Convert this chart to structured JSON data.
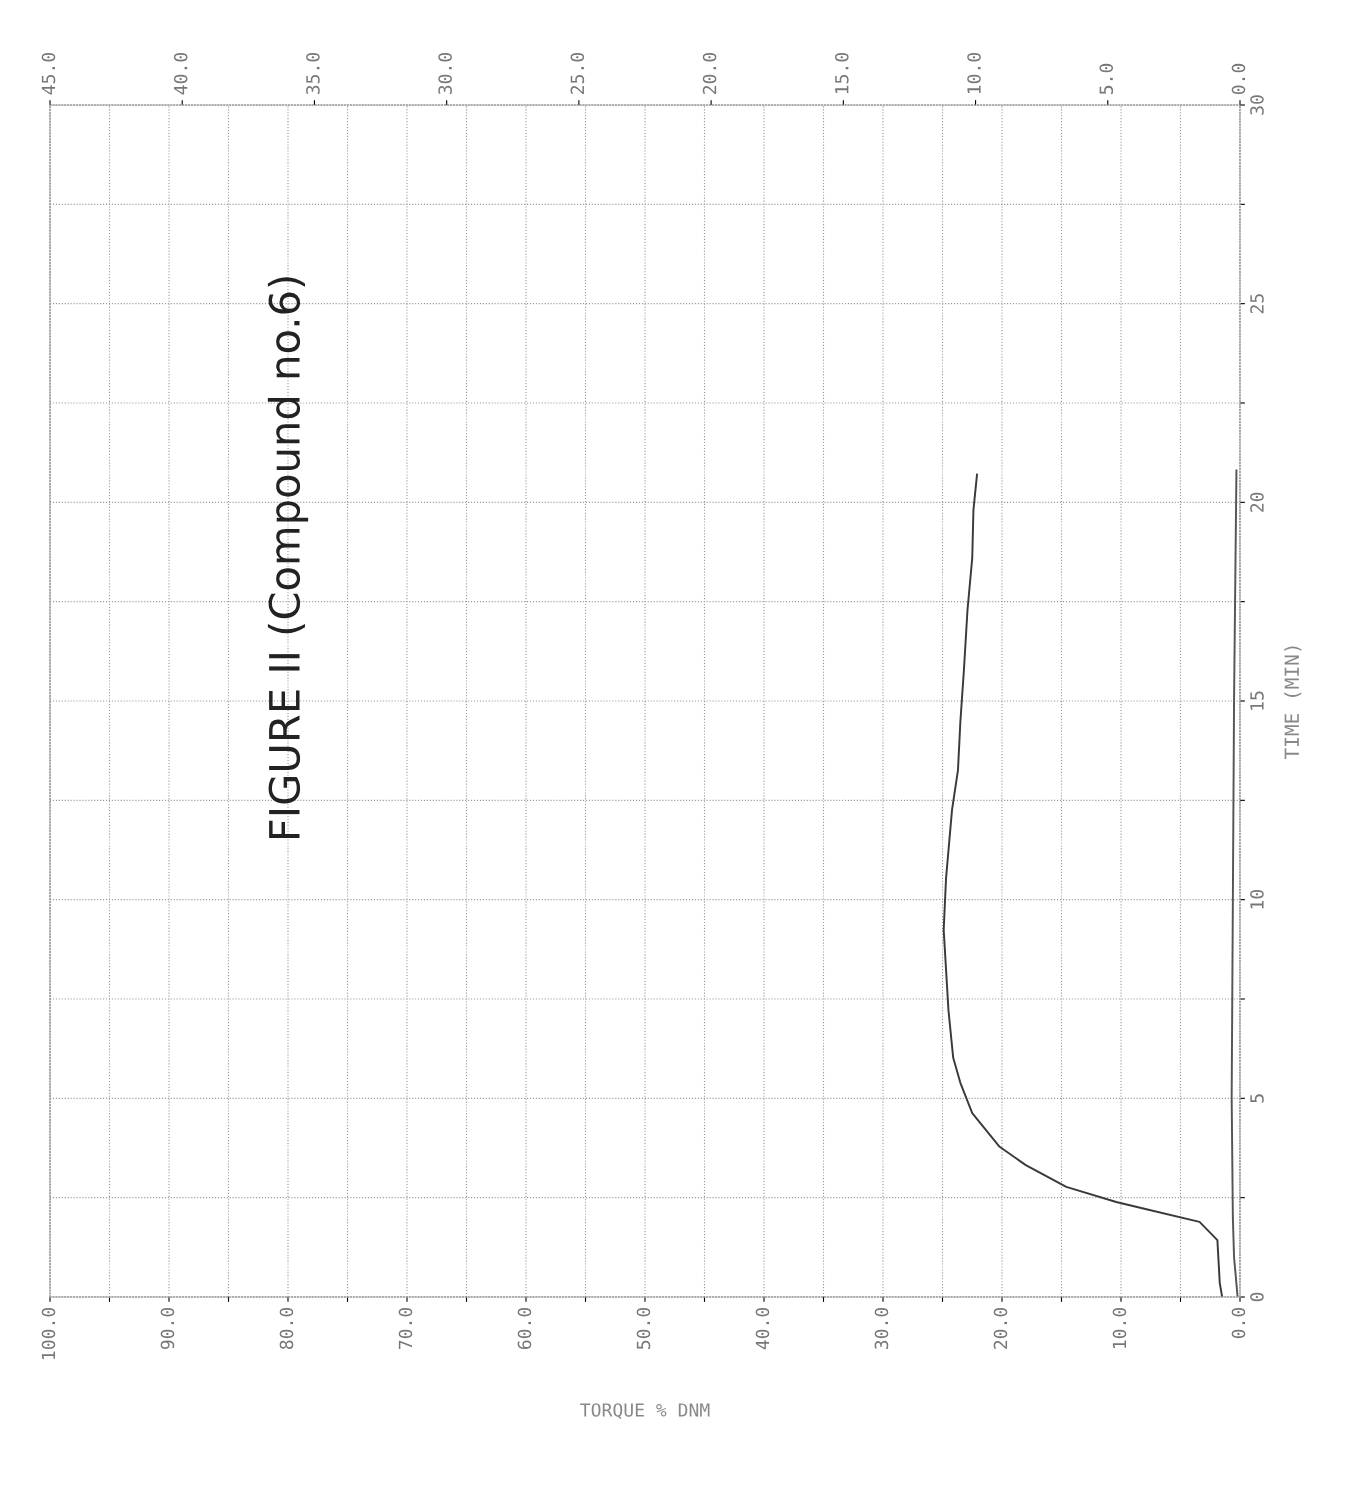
{
  "chart_data": {
    "type": "line",
    "orientation": "horizontal",
    "annotations": [
      "FIGURE II (Compound no.6)"
    ],
    "xlabel": "TORQUE % DNM",
    "ylabel": "TIME (MIN)",
    "xlim": [
      100,
      0
    ],
    "xticks": [
      {
        "value": 100,
        "label": "100.0"
      },
      {
        "value": 95,
        "label": null
      },
      {
        "value": 90,
        "label": "90.0"
      },
      {
        "value": 85,
        "label": null
      },
      {
        "value": 80,
        "label": "80.0"
      },
      {
        "value": 75,
        "label": null
      },
      {
        "value": 70,
        "label": "70.0"
      },
      {
        "value": 65,
        "label": null
      },
      {
        "value": 60,
        "label": "60.0"
      },
      {
        "value": 55,
        "label": null
      },
      {
        "value": 50,
        "label": "50.0"
      },
      {
        "value": 45,
        "label": null
      },
      {
        "value": 40,
        "label": "40.0"
      },
      {
        "value": 35,
        "label": null
      },
      {
        "value": 30,
        "label": "30.0"
      },
      {
        "value": 25,
        "label": null
      },
      {
        "value": 20,
        "label": "20.0"
      },
      {
        "value": 15,
        "label": null
      },
      {
        "value": 10,
        "label": "10.0"
      },
      {
        "value": 5,
        "label": null
      },
      {
        "value": 0,
        "label": "0.0"
      }
    ],
    "x2lim": [
      45,
      0
    ],
    "x2ticks": [
      {
        "value": 45,
        "label": "45.0"
      },
      {
        "value": 40,
        "label": "40.0"
      },
      {
        "value": 35,
        "label": "35.0"
      },
      {
        "value": 30,
        "label": "30.0"
      },
      {
        "value": 25,
        "label": "25.0"
      },
      {
        "value": 20,
        "label": "20.0"
      },
      {
        "value": 15,
        "label": "15.0"
      },
      {
        "value": 10,
        "label": "10.0"
      },
      {
        "value": 5,
        "label": "5.0"
      },
      {
        "value": 0,
        "label": "0.0"
      }
    ],
    "ylim": [
      0,
      30
    ],
    "yticks": [
      0,
      {
        "value": 2.5,
        "label": null
      },
      5,
      {
        "value": 7.5,
        "label": null
      },
      10,
      {
        "value": 12.5,
        "label": null
      },
      15,
      {
        "value": 17.5,
        "label": null
      },
      20,
      {
        "value": 22.5,
        "label": null
      },
      25,
      {
        "value": 27.5,
        "label": null
      },
      30
    ],
    "grid": true,
    "line_style": "solid",
    "marker": "none",
    "series": [
      {
        "color": "#3a3a3a",
        "x": [
          0,
          0.35,
          1.43,
          1.89,
          2.19,
          2.39,
          2.77,
          3.32,
          3.78,
          4.63,
          5.39,
          6.02,
          7.22,
          9.24,
          10.55,
          12.26,
          13.26,
          14.47,
          15.78,
          17.29,
          18.6,
          19.81,
          20.7
        ],
        "values": [
          1.5,
          1.7,
          1.9,
          3.4,
          7.6,
          10.4,
          14.6,
          18.0,
          20.2,
          22.5,
          23.5,
          24.1,
          24.5,
          24.9,
          24.7,
          24.2,
          23.7,
          23.5,
          23.2,
          22.9,
          22.5,
          22.4,
          22.1
        ]
      },
      {
        "color": "#555555",
        "x": [
          0,
          1,
          2,
          5,
          10,
          15,
          20.8
        ],
        "values": [
          0.2,
          0.5,
          0.6,
          0.7,
          0.6,
          0.5,
          0.3
        ]
      }
    ]
  }
}
